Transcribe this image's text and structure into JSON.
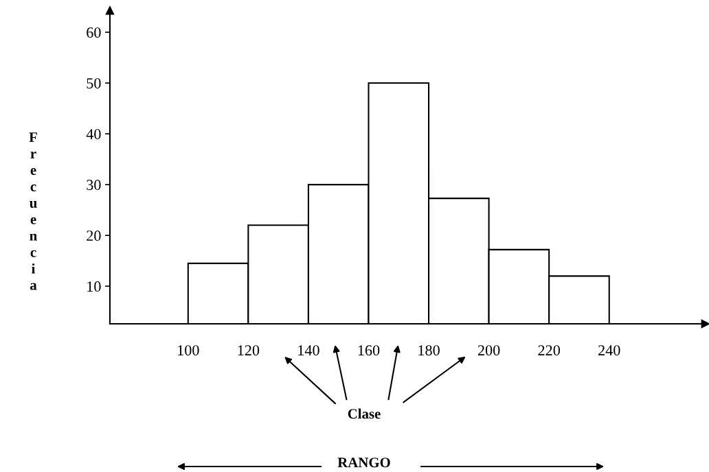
{
  "chart_data": {
    "type": "histogram",
    "ylabel": "Frecuencia",
    "bins": [
      100,
      120,
      140,
      160,
      180,
      200,
      220,
      240
    ],
    "values": [
      14.5,
      22,
      30,
      50,
      27.3,
      17.2,
      12
    ],
    "color": "#ffffff",
    "xlim": [
      74,
      272
    ],
    "ylim": [
      2.6,
      64.3
    ],
    "xticks": [
      100,
      120,
      140,
      160,
      180,
      200,
      220,
      240
    ],
    "yticks": [
      10,
      20,
      30,
      40,
      50,
      60
    ],
    "grid": false,
    "legend": false,
    "annotations": [
      "Clase",
      "RANGO"
    ]
  }
}
